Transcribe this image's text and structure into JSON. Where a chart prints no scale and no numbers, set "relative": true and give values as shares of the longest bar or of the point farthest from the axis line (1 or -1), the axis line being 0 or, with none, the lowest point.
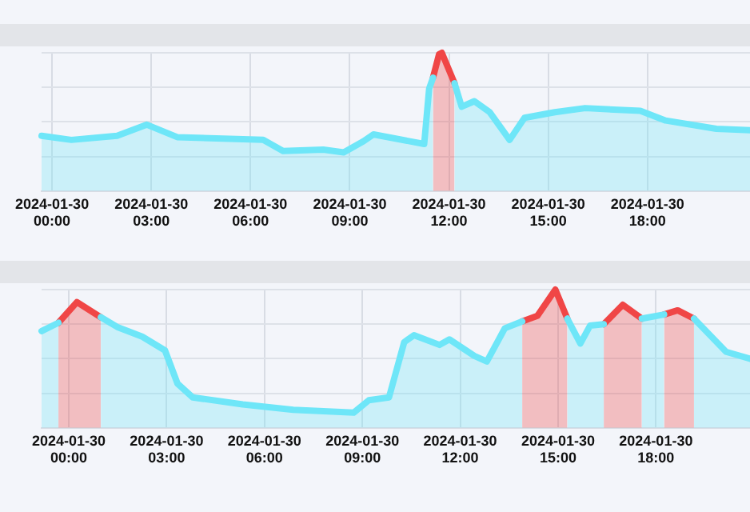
{
  "chart_data": [
    {
      "type": "area",
      "relative": true,
      "grid": true,
      "x": [
        "2024-01-29T23:41",
        "2024-01-30T00:35",
        "2024-01-30T01:58",
        "2024-01-30T02:52",
        "2024-01-30T03:47",
        "2024-01-30T05:10",
        "2024-01-30T06:23",
        "2024-01-30T06:59",
        "2024-01-30T08:12",
        "2024-01-30T08:49",
        "2024-01-30T09:25",
        "2024-01-30T09:43",
        "2024-01-30T11:15",
        "2024-01-30T11:24",
        "2024-01-30T11:31",
        "2024-01-30T11:42",
        "2024-01-30T11:47",
        "2024-01-30T12:10",
        "2024-01-30T12:23",
        "2024-01-30T12:46",
        "2024-01-30T13:14",
        "2024-01-30T13:50",
        "2024-01-30T14:17",
        "2024-01-30T15:12",
        "2024-01-30T16:07",
        "2024-01-30T17:47",
        "2024-01-30T18:33",
        "2024-01-30T20:05",
        "2024-01-30T21:06"
      ],
      "series": [
        {
          "color": "#6ee6f8",
          "values": [
            0.4,
            0.37,
            0.4,
            0.48,
            0.39,
            0.38,
            0.37,
            0.29,
            0.3,
            0.28,
            0.36,
            0.41,
            0.34,
            0.74,
            0.82,
            null,
            null,
            0.78,
            0.61,
            0.65,
            0.57,
            0.37,
            0.53,
            0.57,
            0.6,
            0.58,
            0.51,
            0.45,
            0.44
          ]
        },
        {
          "type": "area",
          "color": "#f04646",
          "x": [
            "2024-01-30T11:31",
            "2024-01-30T11:42",
            "2024-01-30T11:47",
            "2024-01-30T12:10"
          ],
          "values": [
            0.82,
            0.99,
            1,
            0.78
          ]
        }
      ],
      "xlim": [
        "2024-01-29T23:41",
        "2024-01-30T21:06"
      ],
      "xticks": [
        {
          "value": "2024-01-30T00:00",
          "label": "2024-01-30 00:00"
        },
        {
          "value": "2024-01-30T03:00",
          "label": "2024-01-30 03:00"
        },
        {
          "value": "2024-01-30T06:00",
          "label": "2024-01-30 06:00"
        },
        {
          "value": "2024-01-30T09:00",
          "label": "2024-01-30 09:00"
        },
        {
          "value": "2024-01-30T12:00",
          "label": "2024-01-30 12:00"
        },
        {
          "value": "2024-01-30T15:00",
          "label": "2024-01-30 15:00"
        },
        {
          "value": "2024-01-30T18:00",
          "label": "2024-01-30 18:00"
        }
      ]
    },
    {
      "type": "area",
      "relative": true,
      "grid": true,
      "x": [
        "2024-01-29T23:10",
        "2024-01-29T23:41",
        "2024-01-30T00:15",
        "2024-01-30T00:59",
        "2024-01-30T01:29",
        "2024-01-30T02:15",
        "2024-01-30T02:57",
        "2024-01-30T03:20",
        "2024-01-30T03:48",
        "2024-01-30T05:20",
        "2024-01-30T06:53",
        "2024-01-30T08:44",
        "2024-01-30T09:12",
        "2024-01-30T09:49",
        "2024-01-30T10:17",
        "2024-01-30T10:35",
        "2024-01-30T11:22",
        "2024-01-30T11:40",
        "2024-01-30T12:26",
        "2024-01-30T12:49",
        "2024-01-30T13:22",
        "2024-01-30T13:54",
        "2024-01-30T14:22",
        "2024-01-30T14:55",
        "2024-01-30T15:17",
        "2024-01-30T15:41",
        "2024-01-30T15:59",
        "2024-01-30T16:24",
        "2024-01-30T16:59",
        "2024-01-30T17:34",
        "2024-01-30T18:15",
        "2024-01-30T18:40",
        "2024-01-30T19:10",
        "2024-01-30T20:09",
        "2024-01-30T20:53"
      ],
      "series": [
        {
          "color": "#6ee6f8",
          "values": [
            0.7,
            0.76,
            null,
            0.8,
            0.73,
            0.66,
            0.56,
            0.32,
            0.22,
            0.17,
            0.13,
            0.11,
            0.2,
            0.22,
            0.62,
            0.67,
            0.6,
            0.64,
            0.52,
            0.48,
            0.72,
            0.77,
            null,
            null,
            0.79,
            0.61,
            0.74,
            0.75,
            null,
            0.79,
            0.82,
            null,
            0.79,
            0.55,
            0.5
          ]
        },
        {
          "type": "area",
          "color": "#f04646",
          "x": [
            "2024-01-29T23:41",
            "2024-01-30T00:15",
            "2024-01-30T00:59"
          ],
          "values": [
            0.76,
            0.91,
            0.8
          ]
        },
        {
          "type": "area",
          "color": "#f04646",
          "x": [
            "2024-01-30T13:54",
            "2024-01-30T14:22",
            "2024-01-30T14:55",
            "2024-01-30T15:17"
          ],
          "values": [
            0.77,
            0.81,
            1,
            0.79
          ]
        },
        {
          "type": "area",
          "color": "#f04646",
          "x": [
            "2024-01-30T16:24",
            "2024-01-30T16:59",
            "2024-01-30T17:34"
          ],
          "values": [
            0.75,
            0.89,
            0.79
          ]
        },
        {
          "type": "area",
          "color": "#f04646",
          "x": [
            "2024-01-30T18:15",
            "2024-01-30T18:40",
            "2024-01-30T19:10"
          ],
          "values": [
            0.82,
            0.85,
            0.79
          ]
        }
      ],
      "xlim": [
        "2024-01-29T23:10",
        "2024-01-30T20:53"
      ],
      "xticks": [
        {
          "value": "2024-01-30T00:00",
          "label": "2024-01-30 00:00"
        },
        {
          "value": "2024-01-30T03:00",
          "label": "2024-01-30 03:00"
        },
        {
          "value": "2024-01-30T06:00",
          "label": "2024-01-30 06:00"
        },
        {
          "value": "2024-01-30T09:00",
          "label": "2024-01-30 09:00"
        },
        {
          "value": "2024-01-30T12:00",
          "label": "2024-01-30 12:00"
        },
        {
          "value": "2024-01-30T15:00",
          "label": "2024-01-30 15:00"
        },
        {
          "value": "2024-01-30T18:00",
          "label": "2024-01-30 18:00"
        }
      ]
    }
  ]
}
